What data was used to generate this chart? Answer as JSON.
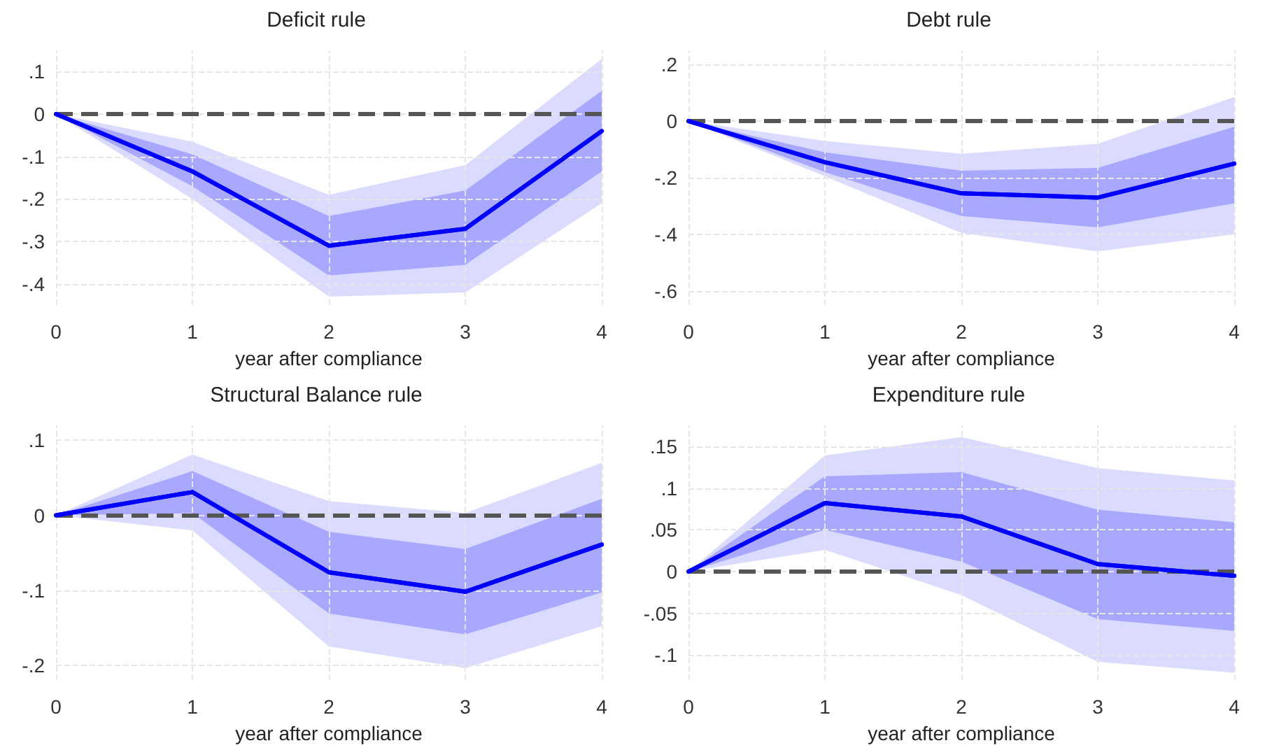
{
  "chart_data": [
    {
      "type": "line",
      "title": "Deficit rule",
      "xlabel": "year after compliance",
      "x": [
        0,
        1,
        2,
        3,
        4
      ],
      "xlim": [
        0,
        4
      ],
      "xticks": [
        0,
        1,
        2,
        3,
        4
      ],
      "ylim": [
        -0.45,
        0.15
      ],
      "yticks": [
        {
          "value": -0.4,
          "label": "-.4"
        },
        {
          "value": -0.3,
          "label": "-.3"
        },
        {
          "value": -0.2,
          "label": "-.2"
        },
        {
          "value": -0.1,
          "label": "-.1"
        },
        {
          "value": 0,
          "label": "0"
        },
        {
          "value": 0.1,
          "label": ".1"
        }
      ],
      "grid": true,
      "marker": "none",
      "line_style": "solid",
      "series": [
        {
          "color": "#0000ff",
          "values": [
            0,
            -0.135,
            -0.31,
            -0.27,
            -0.04
          ],
          "lower": [
            0,
            -0.2,
            -0.43,
            -0.42,
            -0.21
          ],
          "upper": [
            0,
            -0.065,
            -0.19,
            -0.12,
            0.13
          ]
        },
        {
          "color": "#0000ff",
          "values": [
            0,
            -0.135,
            -0.31,
            -0.27,
            -0.04
          ],
          "lower": [
            0,
            -0.17,
            -0.38,
            -0.355,
            -0.135
          ],
          "upper": [
            0,
            -0.095,
            -0.24,
            -0.18,
            0.055
          ]
        }
      ],
      "ref_lines": [
        {
          "axis": "y",
          "value": 0,
          "color": "#555555",
          "line_style": "dashed"
        }
      ]
    },
    {
      "type": "line",
      "title": "Debt rule",
      "xlabel": "year after compliance",
      "x": [
        0,
        1,
        2,
        3,
        4
      ],
      "xlim": [
        0,
        4
      ],
      "xticks": [
        0,
        1,
        2,
        3,
        4
      ],
      "ylim": [
        -0.65,
        0.25
      ],
      "yticks": [
        {
          "value": -0.6,
          "label": "-.6"
        },
        {
          "value": -0.4,
          "label": "-.4"
        },
        {
          "value": -0.2,
          "label": "-.2"
        },
        {
          "value": 0,
          "label": "0"
        },
        {
          "value": 0.2,
          "label": ".2"
        }
      ],
      "grid": true,
      "marker": "none",
      "line_style": "solid",
      "series": [
        {
          "color": "#0000ff",
          "values": [
            0,
            -0.145,
            -0.255,
            -0.27,
            -0.15
          ],
          "lower": [
            0,
            -0.195,
            -0.395,
            -0.46,
            -0.4
          ],
          "upper": [
            0,
            -0.07,
            -0.115,
            -0.08,
            0.085
          ]
        },
        {
          "color": "#0000ff",
          "values": [
            0,
            -0.145,
            -0.255,
            -0.27,
            -0.15
          ],
          "lower": [
            0,
            -0.18,
            -0.335,
            -0.375,
            -0.29
          ],
          "upper": [
            0,
            -0.11,
            -0.175,
            -0.165,
            -0.02
          ]
        }
      ],
      "ref_lines": [
        {
          "axis": "y",
          "value": 0,
          "color": "#555555",
          "line_style": "dashed"
        }
      ]
    },
    {
      "type": "line",
      "title": "Structural Balance rule",
      "xlabel": "year after compliance",
      "x": [
        0,
        1,
        2,
        3,
        4
      ],
      "xlim": [
        0,
        4
      ],
      "xticks": [
        0,
        1,
        2,
        3,
        4
      ],
      "ylim": [
        -0.22,
        0.12
      ],
      "yticks": [
        {
          "value": -0.2,
          "label": "-.2"
        },
        {
          "value": -0.1,
          "label": "-.1"
        },
        {
          "value": 0,
          "label": "0"
        },
        {
          "value": 0.1,
          "label": ".1"
        }
      ],
      "grid": true,
      "marker": "none",
      "line_style": "solid",
      "series": [
        {
          "color": "#0000ff",
          "values": [
            0,
            0.031,
            -0.076,
            -0.102,
            -0.039
          ],
          "lower": [
            0,
            -0.02,
            -0.175,
            -0.204,
            -0.148
          ],
          "upper": [
            0,
            0.081,
            0.019,
            0.003,
            0.07
          ]
        },
        {
          "color": "#0000ff",
          "values": [
            0,
            0.031,
            -0.076,
            -0.102,
            -0.039
          ],
          "lower": [
            0,
            0.003,
            -0.131,
            -0.159,
            -0.103
          ],
          "upper": [
            0,
            0.059,
            -0.022,
            -0.045,
            0.022
          ]
        }
      ],
      "ref_lines": [
        {
          "axis": "y",
          "value": 0,
          "color": "#555555",
          "line_style": "dashed"
        }
      ]
    },
    {
      "type": "line",
      "title": "Expenditure rule",
      "xlabel": "year after compliance",
      "x": [
        0,
        1,
        2,
        3,
        4
      ],
      "xlim": [
        0,
        4
      ],
      "xticks": [
        0,
        1,
        2,
        3,
        4
      ],
      "ylim": [
        -0.13,
        0.175
      ],
      "yticks": [
        {
          "value": -0.1,
          "label": "-.1"
        },
        {
          "value": -0.05,
          "label": "-.05"
        },
        {
          "value": 0,
          "label": "0"
        },
        {
          "value": 0.05,
          "label": ".05"
        },
        {
          "value": 0.1,
          "label": ".1"
        },
        {
          "value": 0.15,
          "label": ".15"
        }
      ],
      "grid": true,
      "marker": "none",
      "line_style": "solid",
      "series": [
        {
          "color": "#0000ff",
          "values": [
            0,
            0.082,
            0.066,
            0.009,
            -0.005
          ],
          "lower": [
            0,
            0.026,
            -0.028,
            -0.108,
            -0.121
          ],
          "upper": [
            0,
            0.139,
            0.161,
            0.124,
            0.109
          ]
        },
        {
          "color": "#0000ff",
          "values": [
            0,
            0.082,
            0.066,
            0.009,
            -0.005
          ],
          "lower": [
            0,
            0.05,
            0.012,
            -0.057,
            -0.071
          ],
          "upper": [
            0,
            0.114,
            0.119,
            0.074,
            0.059
          ]
        }
      ],
      "ref_lines": [
        {
          "axis": "y",
          "value": 0,
          "color": "#555555",
          "line_style": "dashed"
        }
      ]
    }
  ]
}
